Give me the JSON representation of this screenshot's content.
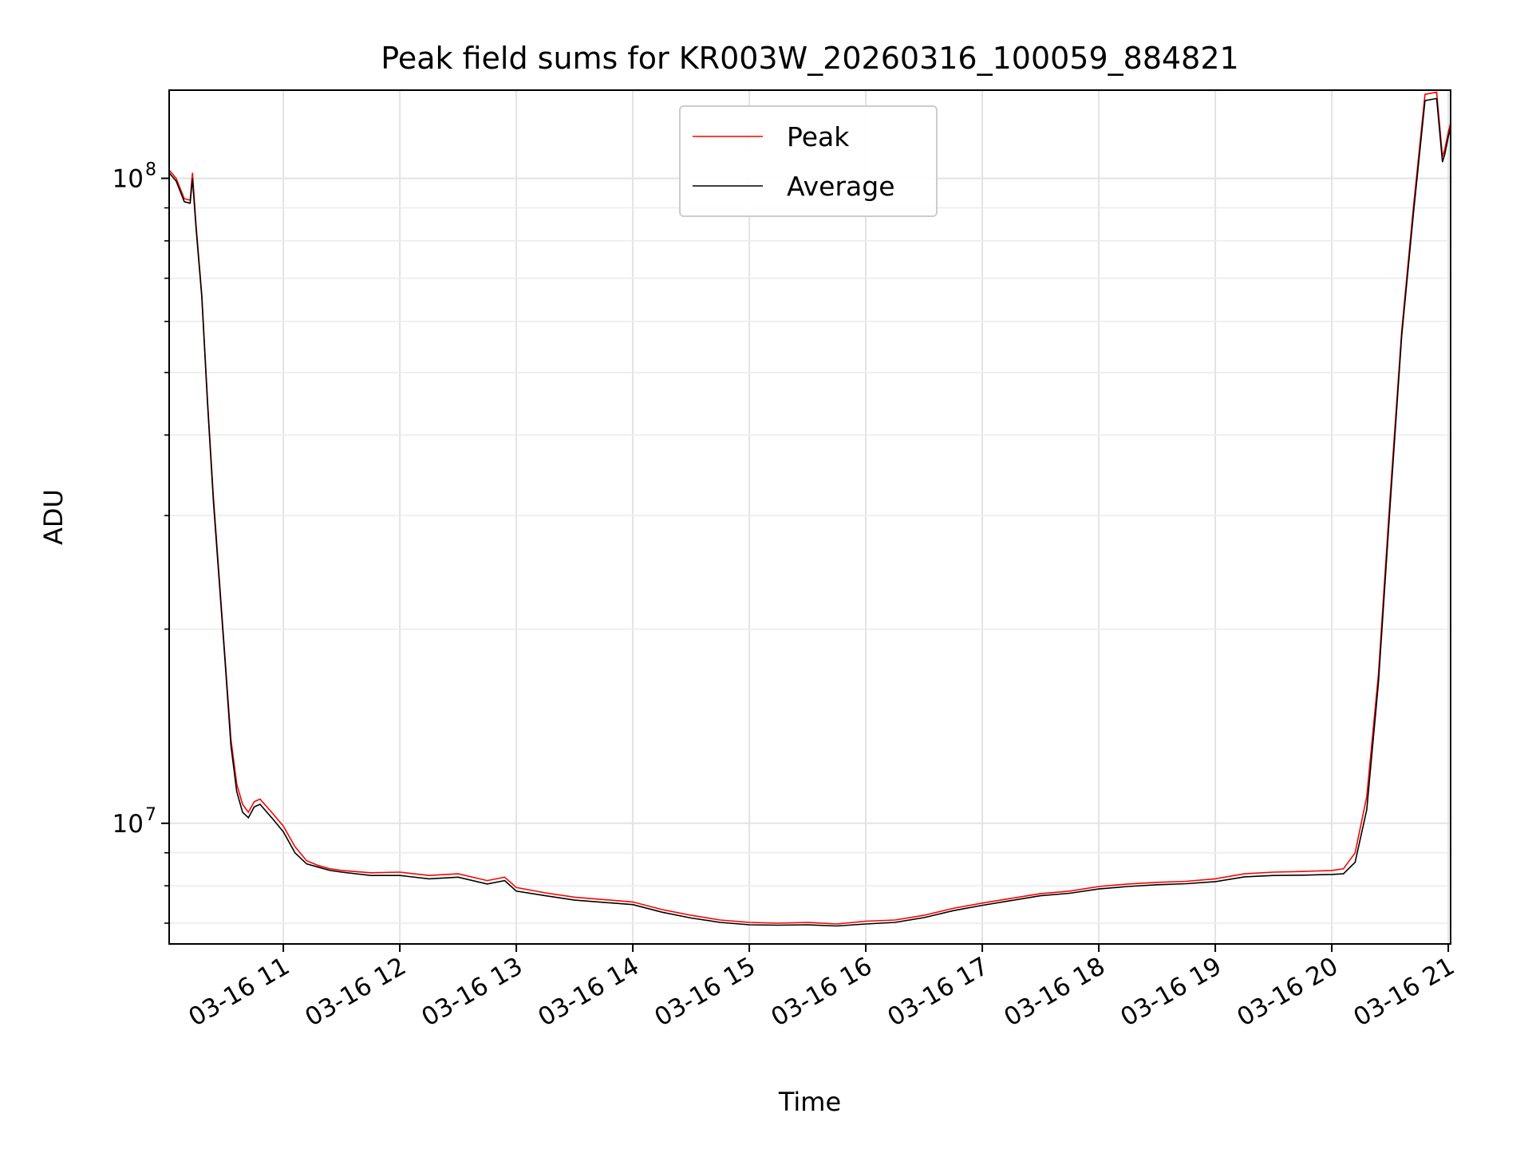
{
  "chart_data": {
    "type": "line",
    "title": "Peak field sums for KR003W_20260316_100059_884821",
    "xlabel": "Time",
    "ylabel": "ADU",
    "yscale": "log",
    "ylim": [
      6500000,
      137000000
    ],
    "xlim": [
      10.02,
      21.02
    ],
    "grid": true,
    "legend_position": "top-center",
    "x_ticks": [
      {
        "value": 11,
        "label": "03-16 11"
      },
      {
        "value": 12,
        "label": "03-16 12"
      },
      {
        "value": 13,
        "label": "03-16 13"
      },
      {
        "value": 14,
        "label": "03-16 14"
      },
      {
        "value": 15,
        "label": "03-16 15"
      },
      {
        "value": 16,
        "label": "03-16 16"
      },
      {
        "value": 17,
        "label": "03-16 17"
      },
      {
        "value": 18,
        "label": "03-16 18"
      },
      {
        "value": 19,
        "label": "03-16 19"
      },
      {
        "value": 20,
        "label": "03-16 20"
      },
      {
        "value": 21,
        "label": "03-16 21"
      }
    ],
    "y_ticks": [
      {
        "value": 10000000,
        "base": "10",
        "exp": "7"
      },
      {
        "value": 100000000,
        "base": "10",
        "exp": "8"
      }
    ],
    "series": [
      {
        "name": "Peak",
        "color": "#ff0000",
        "x": [
          10.0,
          10.08,
          10.15,
          10.2,
          10.22,
          10.25,
          10.3,
          10.35,
          10.4,
          10.5,
          10.55,
          10.6,
          10.65,
          10.7,
          10.75,
          10.8,
          10.9,
          11.0,
          11.1,
          11.2,
          11.3,
          11.4,
          11.5,
          11.75,
          12.0,
          12.25,
          12.5,
          12.75,
          12.9,
          13.0,
          13.25,
          13.5,
          14.0,
          14.25,
          14.5,
          14.75,
          15.0,
          15.25,
          15.5,
          15.75,
          16.0,
          16.25,
          16.5,
          16.75,
          17.0,
          17.25,
          17.5,
          17.75,
          18.0,
          18.25,
          18.5,
          18.75,
          19.0,
          19.25,
          19.5,
          19.75,
          20.0,
          20.1,
          20.2,
          20.3,
          20.4,
          20.5,
          20.6,
          20.7,
          20.8,
          20.9,
          20.95,
          20.97,
          21.0,
          21.02
        ],
        "values": [
          104000000,
          100000000,
          93000000,
          92500000,
          102000000,
          85000000,
          66000000,
          45000000,
          32000000,
          18000000,
          13500000,
          11500000,
          10700000,
          10400000,
          10800000,
          10900000,
          10400000,
          9900000,
          9200000,
          8750000,
          8600000,
          8500000,
          8450000,
          8380000,
          8400000,
          8300000,
          8350000,
          8150000,
          8250000,
          7950000,
          7800000,
          7680000,
          7550000,
          7350000,
          7200000,
          7080000,
          7020000,
          7000000,
          7020000,
          6980000,
          7050000,
          7080000,
          7200000,
          7380000,
          7520000,
          7650000,
          7780000,
          7850000,
          7980000,
          8050000,
          8100000,
          8130000,
          8200000,
          8350000,
          8400000,
          8420000,
          8450000,
          8500000,
          9000000,
          11000000,
          17000000,
          32000000,
          58000000,
          90000000,
          135000000,
          136000000,
          108000000,
          111000000,
          118000000,
          122000000
        ]
      },
      {
        "name": "Average",
        "color": "#000000",
        "x": [
          10.0,
          10.08,
          10.15,
          10.2,
          10.22,
          10.25,
          10.3,
          10.35,
          10.4,
          10.5,
          10.55,
          10.6,
          10.65,
          10.7,
          10.75,
          10.8,
          10.9,
          11.0,
          11.1,
          11.2,
          11.3,
          11.4,
          11.5,
          11.75,
          12.0,
          12.25,
          12.5,
          12.75,
          12.9,
          13.0,
          13.25,
          13.5,
          14.0,
          14.25,
          14.5,
          14.75,
          15.0,
          15.25,
          15.5,
          15.75,
          16.0,
          16.25,
          16.5,
          16.75,
          17.0,
          17.25,
          17.5,
          17.75,
          18.0,
          18.25,
          18.5,
          18.75,
          19.0,
          19.25,
          19.5,
          19.75,
          20.0,
          20.1,
          20.2,
          20.3,
          20.4,
          20.5,
          20.6,
          20.7,
          20.8,
          20.9,
          20.95,
          20.97,
          21.0,
          21.02
        ],
        "values": [
          103000000,
          99000000,
          92000000,
          91500000,
          100000000,
          84000000,
          65500000,
          44500000,
          31500000,
          17800000,
          13200000,
          11200000,
          10400000,
          10200000,
          10600000,
          10700000,
          10200000,
          9700000,
          9000000,
          8650000,
          8550000,
          8450000,
          8400000,
          8300000,
          8300000,
          8200000,
          8250000,
          8050000,
          8150000,
          7850000,
          7720000,
          7600000,
          7480000,
          7280000,
          7130000,
          7020000,
          6960000,
          6950000,
          6960000,
          6930000,
          6980000,
          7020000,
          7140000,
          7320000,
          7460000,
          7590000,
          7720000,
          7790000,
          7910000,
          7980000,
          8030000,
          8060000,
          8120000,
          8260000,
          8300000,
          8310000,
          8330000,
          8350000,
          8700000,
          10500000,
          16500000,
          31000000,
          57000000,
          88000000,
          132000000,
          133000000,
          106000000,
          109000000,
          116000000,
          120000000
        ]
      }
    ]
  }
}
